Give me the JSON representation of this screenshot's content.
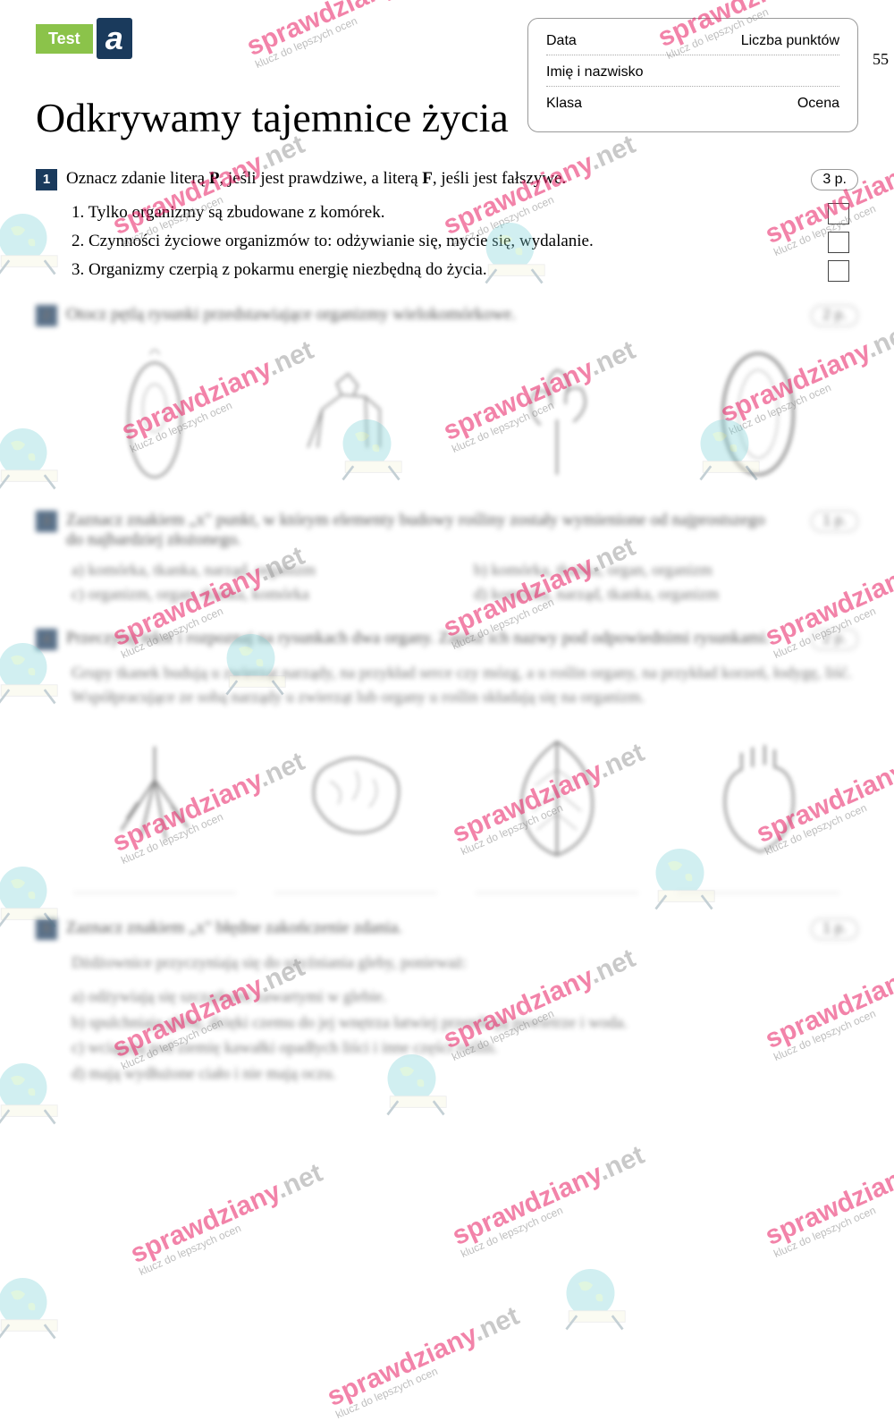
{
  "badge": {
    "test": "Test",
    "letter": "a"
  },
  "page_number": "55",
  "info_box": {
    "data": "Data",
    "points": "Liczba punktów",
    "name": "Imię i nazwisko",
    "class": "Klasa",
    "grade": "Ocena"
  },
  "title": "Odkrywamy tajemnice życia",
  "q1": {
    "num": "1",
    "text_pre": "Oznacz zdanie literą ",
    "p": "P",
    "text_mid": ", jeśli jest prawdziwe, a literą ",
    "f": "F",
    "text_post": ", jeśli jest fałszywe.",
    "points": "3 p.",
    "statements": [
      "1. Tylko organizmy są zbudowane z komórek.",
      "2. Czynności życiowe organizmów to: odżywianie się, mycie się, wydalanie.",
      "3. Organizmy czerpią z pokarmu energię niezbędną do życia."
    ]
  },
  "q2": {
    "num": "2",
    "text": "Otocz pętlą rysunki przedstawiające organizmy wielokomórkowe.",
    "points": "2 p."
  },
  "q3": {
    "num": "3",
    "text": "Zaznacz znakiem „x\" punkt, w którym elementy budowy rośliny zostały wymienione od najprostszego do najbardziej złożonego.",
    "points": "1 p.",
    "options": {
      "a": "a) komórka, tkanka, narząd, organizm",
      "b": "b) komórka, tkanka, organ, organizm",
      "c": "c) organizm, organ, tkanka, komórka",
      "d": "d) komórka, narząd, tkanka, organizm"
    }
  },
  "q4": {
    "num": "4",
    "text": "Przeczytaj tekst i rozpoznaj na rysunkach dwa organy. Zapisz ich nazwy pod odpowiednimi rysunkami.",
    "points": "2 p.",
    "body": "Grupy tkanek budują u zwierząt narządy, na przykład serce czy mózg, a u roślin organy, na przykład korzeń, łodygę, liść. Współpracujące ze sobą narządy u zwierząt lub organy u roślin składają się na organizm."
  },
  "q5": {
    "num": "5",
    "text": "Zaznacz znakiem „x\" błędne zakończenie zdania.",
    "points": "1 p.",
    "intro": "Dżdżownice przyczyniają się do użyźniania gleby, ponieważ:",
    "options": {
      "a": "a) odżywiają się szczątkami zawartymi w glebie.",
      "b": "b) spulchniają glebę, dzięki czemu do jej wnętrza łatwiej przenikają powietrze i woda.",
      "c": "c) wciągają pod ziemię kawałki opadłych liści i inne części roślin.",
      "d": "d) mają wydłużone ciało i nie mają oczu."
    }
  },
  "watermark": {
    "main1": "sprawdziany",
    "main2": ".net",
    "sub": "klucz do lepszych ocen"
  },
  "colors": {
    "badge_green": "#8bc34a",
    "badge_navy": "#1a3a5c",
    "wm_pink": "#e91e63",
    "wm_grey": "#9e9e9e",
    "globe": "#7dd3d8"
  }
}
